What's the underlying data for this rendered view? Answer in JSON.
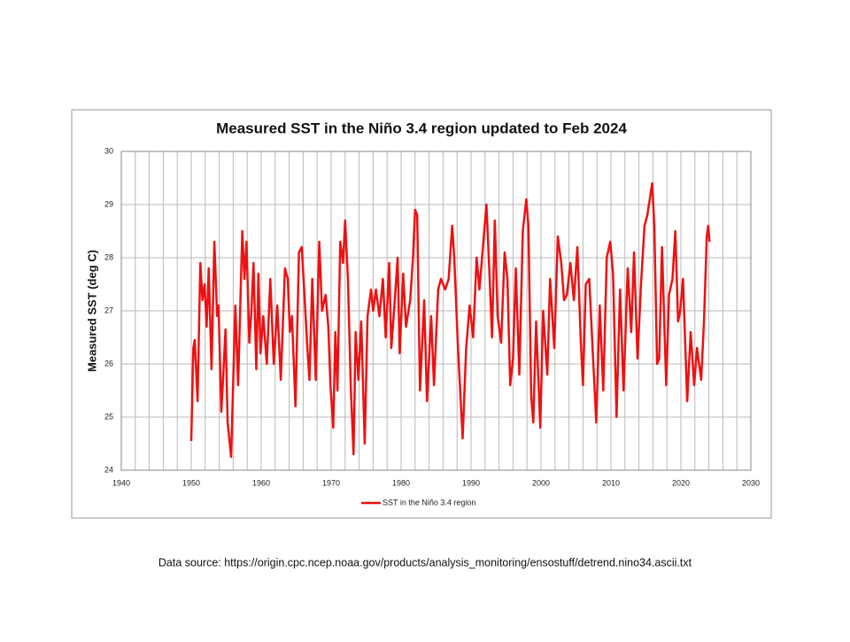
{
  "chart_data": {
    "type": "line",
    "title": "Measured SST in the Niño 3.4 region updated to Feb 2024",
    "y_label": "Measured SST (deg C)",
    "footnote": "Data source: https://origin.cpc.ncep.noaa.gov/products/analysis_monitoring/ensostuff/detrend.nino34.ascii.txt",
    "xlim": [
      1940,
      2030
    ],
    "xticks": [
      1940,
      1950,
      1960,
      1970,
      1980,
      1990,
      2000,
      2010,
      2020,
      2030
    ],
    "xminor": [
      1942,
      1944,
      1946,
      1948,
      1952,
      1954,
      1956,
      1958,
      1962,
      1964,
      1966,
      1968,
      1972,
      1974,
      1976,
      1978,
      1982,
      1984,
      1986,
      1988,
      1992,
      1994,
      1996,
      1998,
      2002,
      2004,
      2006,
      2008,
      2012,
      2014,
      2016,
      2018,
      2022,
      2024,
      2026,
      2028
    ],
    "ylim": [
      24,
      30
    ],
    "yticks": [
      24,
      25,
      26,
      27,
      28,
      29,
      30
    ],
    "grid": true,
    "legend": "bottom",
    "x": [
      1950.0,
      1950.3,
      1950.5,
      1950.9,
      1951.3,
      1951.6,
      1951.9,
      1952.2,
      1952.5,
      1952.9,
      1953.3,
      1953.7,
      1953.9,
      1954.3,
      1954.5,
      1954.9,
      1955.2,
      1955.7,
      1956.3,
      1956.7,
      1957.3,
      1957.6,
      1957.9,
      1958.3,
      1958.6,
      1958.9,
      1959.3,
      1959.6,
      1959.9,
      1960.3,
      1960.8,
      1961.3,
      1961.8,
      1962.3,
      1962.8,
      1963.4,
      1963.8,
      1964.1,
      1964.4,
      1964.9,
      1965.4,
      1965.8,
      1966.1,
      1966.6,
      1966.9,
      1967.3,
      1967.8,
      1968.3,
      1968.7,
      1969.2,
      1969.6,
      1969.9,
      1970.3,
      1970.6,
      1970.9,
      1971.3,
      1971.7,
      1972.0,
      1972.4,
      1972.8,
      1973.2,
      1973.5,
      1973.9,
      1974.3,
      1974.8,
      1975.2,
      1975.7,
      1976.0,
      1976.4,
      1976.9,
      1977.4,
      1977.8,
      1978.3,
      1978.6,
      1979.1,
      1979.5,
      1979.8,
      1980.3,
      1980.7,
      1981.3,
      1981.7,
      1982.0,
      1982.3,
      1982.7,
      1983.3,
      1983.7,
      1984.3,
      1984.7,
      1985.3,
      1985.7,
      1986.3,
      1986.8,
      1987.3,
      1987.6,
      1988.1,
      1988.8,
      1989.3,
      1989.8,
      1990.3,
      1990.8,
      1991.2,
      1991.7,
      1992.2,
      1992.6,
      1993.0,
      1993.4,
      1993.8,
      1994.3,
      1994.8,
      1995.2,
      1995.6,
      1996.0,
      1996.4,
      1996.9,
      1997.4,
      1997.9,
      1998.2,
      1998.6,
      1998.9,
      1999.3,
      1999.9,
      2000.3,
      2000.9,
      2001.3,
      2001.9,
      2002.4,
      2002.9,
      2003.3,
      2003.7,
      2004.2,
      2004.7,
      2005.2,
      2005.7,
      2006.0,
      2006.4,
      2006.9,
      2007.3,
      2007.9,
      2008.4,
      2008.9,
      2009.4,
      2009.9,
      2010.3,
      2010.8,
      2011.3,
      2011.8,
      2012.4,
      2012.9,
      2013.3,
      2013.8,
      2014.3,
      2014.8,
      2015.2,
      2015.9,
      2016.2,
      2016.6,
      2016.9,
      2017.3,
      2017.9,
      2018.3,
      2018.8,
      2019.2,
      2019.6,
      2019.9,
      2020.3,
      2020.9,
      2021.4,
      2021.9,
      2022.3,
      2022.9,
      2023.3,
      2023.7,
      2023.9,
      2024.1
    ],
    "series": [
      {
        "name": "SST in the Niño 3.4 region",
        "color": "#ee1111",
        "values": [
          24.55,
          26.3,
          26.45,
          25.3,
          27.9,
          27.2,
          27.5,
          26.7,
          27.8,
          25.9,
          28.3,
          26.9,
          27.1,
          25.1,
          25.6,
          26.65,
          24.9,
          24.25,
          27.1,
          25.6,
          28.5,
          27.6,
          28.3,
          26.4,
          27.0,
          27.9,
          25.9,
          27.7,
          26.2,
          26.9,
          26.0,
          27.6,
          26.0,
          27.1,
          25.7,
          27.8,
          27.6,
          26.6,
          26.9,
          25.2,
          28.1,
          28.2,
          27.5,
          26.3,
          25.7,
          27.6,
          25.7,
          28.3,
          27.0,
          27.3,
          26.7,
          25.6,
          24.8,
          26.6,
          25.5,
          28.3,
          27.9,
          28.7,
          27.6,
          25.6,
          24.3,
          26.6,
          25.7,
          26.8,
          24.5,
          26.9,
          27.4,
          27.0,
          27.4,
          26.9,
          27.6,
          26.5,
          27.9,
          26.3,
          27.2,
          28.0,
          26.2,
          27.7,
          26.7,
          27.2,
          28.0,
          28.9,
          28.8,
          25.5,
          27.2,
          25.3,
          26.9,
          25.6,
          27.4,
          27.6,
          27.4,
          27.6,
          28.6,
          28.0,
          26.4,
          24.6,
          26.3,
          27.1,
          26.5,
          28.0,
          27.4,
          28.2,
          29.0,
          27.8,
          26.5,
          28.7,
          26.9,
          26.4,
          28.1,
          27.6,
          25.6,
          26.1,
          27.8,
          25.8,
          28.5,
          29.1,
          28.6,
          25.4,
          24.9,
          26.8,
          24.8,
          27.0,
          25.8,
          27.6,
          26.3,
          28.4,
          27.9,
          27.2,
          27.3,
          27.9,
          27.2,
          28.2,
          26.4,
          25.6,
          27.5,
          27.6,
          26.5,
          24.9,
          27.1,
          25.5,
          28.0,
          28.3,
          27.7,
          25.0,
          27.4,
          25.5,
          27.8,
          26.6,
          28.1,
          26.1,
          27.5,
          28.6,
          28.8,
          29.4,
          28.6,
          26.0,
          26.1,
          28.2,
          25.6,
          27.3,
          27.6,
          28.5,
          26.8,
          27.0,
          27.6,
          25.3,
          26.6,
          25.6,
          26.3,
          25.7,
          26.8,
          28.4,
          28.6,
          28.3
        ]
      }
    ]
  }
}
